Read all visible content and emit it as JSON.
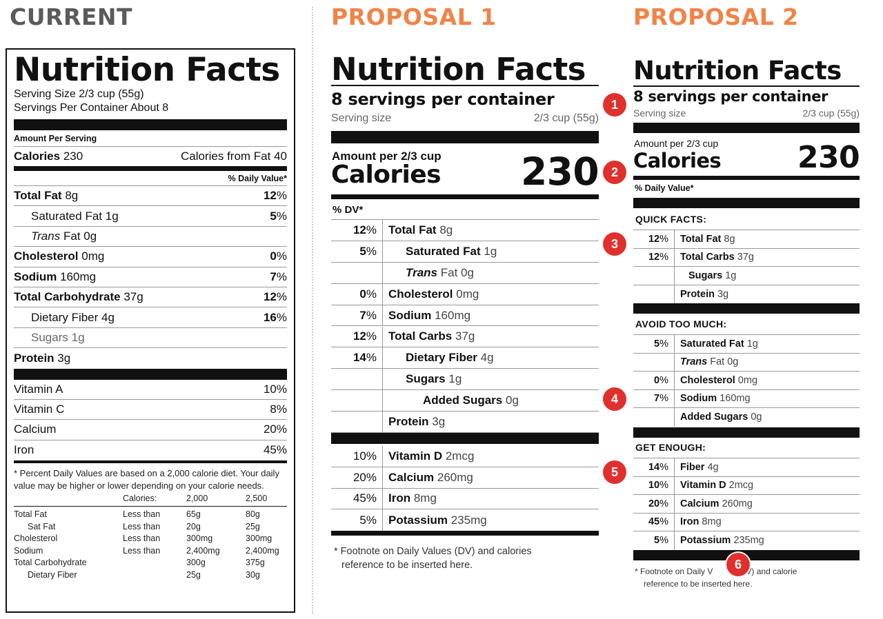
{
  "headings": {
    "current": "CURRENT",
    "proposal1": "PROPOSAL 1",
    "proposal2": "PROPOSAL 2"
  },
  "current": {
    "title": "Nutrition Facts",
    "serving_size": "Serving Size 2/3 cup (55g)",
    "servings_per_container": "Servings Per Container About 8",
    "amount_per_serving": "Amount Per Serving",
    "calories_label": "Calories",
    "calories_value": "230",
    "calories_from_fat": "Calories from Fat 40",
    "daily_value_header": "% Daily Value*",
    "nutrients": [
      {
        "name": "Total Fat",
        "amount": "8g",
        "dv": "12",
        "bold": true,
        "indent": false
      },
      {
        "name": "Saturated Fat",
        "amount": "1g",
        "dv": "5",
        "bold": false,
        "indent": true
      },
      {
        "name": "Trans",
        "amount": "Fat 0g",
        "dv": "",
        "bold": false,
        "indent": true
      },
      {
        "name": "Cholesterol",
        "amount": "0mg",
        "dv": "0",
        "bold": true,
        "indent": false
      },
      {
        "name": "Sodium",
        "amount": "160mg",
        "dv": "7",
        "bold": true,
        "indent": false
      },
      {
        "name": "Total Carbohydrate",
        "amount": "37g",
        "dv": "12",
        "bold": true,
        "indent": false
      },
      {
        "name": "Dietary Fiber",
        "amount": "4g",
        "dv": "16",
        "bold": false,
        "indent": true
      },
      {
        "name": "Sugars",
        "amount": "1g",
        "dv": "",
        "bold": false,
        "indent": true
      },
      {
        "name": "Protein",
        "amount": "3g",
        "dv": "",
        "bold": true,
        "indent": false
      }
    ],
    "vitamins": [
      {
        "name": "Vitamin A",
        "dv": "10%"
      },
      {
        "name": "Vitamin C",
        "dv": "8%"
      },
      {
        "name": "Calcium",
        "dv": "20%"
      },
      {
        "name": "Iron",
        "dv": "45%"
      }
    ],
    "footnote": "* Percent Daily Values are based on a 2,000 calorie diet. Your daily value may be higher or lower depending on your calorie needs.",
    "ref_header": {
      "label": "Calories:",
      "c2000": "2,000",
      "c2500": "2,500"
    },
    "ref_rows": [
      {
        "name": "Total Fat",
        "cond": "Less than",
        "a": "65g",
        "b": "80g"
      },
      {
        "name": "Sat Fat",
        "cond": "Less than",
        "a": "20g",
        "b": "25g"
      },
      {
        "name": "Cholesterol",
        "cond": "Less than",
        "a": "300mg",
        "b": "300mg"
      },
      {
        "name": "Sodium",
        "cond": "Less than",
        "a": "2,400mg",
        "b": "2,400mg"
      },
      {
        "name": "Total Carbohydrate",
        "cond": "",
        "a": "300g",
        "b": "375g"
      },
      {
        "name": "Dietary Fiber",
        "cond": "",
        "a": "25g",
        "b": "30g"
      }
    ]
  },
  "proposal1": {
    "title": "Nutrition Facts",
    "servings": "8 servings per container",
    "serving_size_label": "Serving size",
    "serving_size_value": "2/3 cup (55g)",
    "amount_per": "Amount per 2/3 cup",
    "calories_label": "Calories",
    "calories_value": "230",
    "dv_header": "% DV*",
    "nutrients": [
      {
        "dv": "12",
        "name": "Total Fat",
        "amount": "8g"
      },
      {
        "dv": "5",
        "name": "Saturated Fat",
        "amount": "1g"
      },
      {
        "dv": "",
        "name": "Trans",
        "amount": "Fat 0g"
      },
      {
        "dv": "0",
        "name": "Cholesterol",
        "amount": "0mg"
      },
      {
        "dv": "7",
        "name": "Sodium",
        "amount": "160mg"
      },
      {
        "dv": "12",
        "name": "Total Carbs",
        "amount": "37g"
      },
      {
        "dv": "14",
        "name": "Dietary Fiber",
        "amount": "4g"
      },
      {
        "dv": "",
        "name": "Sugars",
        "amount": "1g"
      },
      {
        "dv": "",
        "name": "Added Sugars",
        "amount": "0g"
      },
      {
        "dv": "",
        "name": "Protein",
        "amount": "3g"
      }
    ],
    "vitamins": [
      {
        "dv": "10%",
        "name": "Vitamin D",
        "amount": "2mcg"
      },
      {
        "dv": "20%",
        "name": "Calcium",
        "amount": "260mg"
      },
      {
        "dv": "45%",
        "name": "Iron",
        "amount": "8mg"
      },
      {
        "dv": "5%",
        "name": "Potassium",
        "amount": "235mg"
      }
    ],
    "footnote_line1": "* Footnote on Daily Values (DV) and calories",
    "footnote_line2": "reference to be inserted here."
  },
  "proposal2": {
    "title": "Nutrition Facts",
    "servings": "8 servings per container",
    "serving_size_label": "Serving size",
    "serving_size_value": "2/3 cup (55g)",
    "amount_per": "Amount per 2/3 cup",
    "calories_label": "Calories",
    "calories_value": "230",
    "daily_value_header": "% Daily Value*",
    "quick_facts_title": "QUICK FACTS:",
    "quick_facts": [
      {
        "dv": "12",
        "name": "Total Fat",
        "amount": "8g"
      },
      {
        "dv": "12",
        "name": "Total Carbs",
        "amount": "37g"
      },
      {
        "dv": "",
        "name": "Sugars",
        "amount": "1g"
      },
      {
        "dv": "",
        "name": "Protein",
        "amount": "3g"
      }
    ],
    "avoid_title": "AVOID TOO MUCH:",
    "avoid": [
      {
        "dv": "5",
        "name": "Saturated Fat",
        "amount": "1g"
      },
      {
        "dv": "",
        "name": "Trans",
        "amount": "Fat 0g"
      },
      {
        "dv": "0",
        "name": "Cholesterol",
        "amount": "0mg"
      },
      {
        "dv": "7",
        "name": "Sodium",
        "amount": "160mg"
      },
      {
        "dv": "",
        "name": "Added Sugars",
        "amount": "0g"
      }
    ],
    "get_title": "GET ENOUGH:",
    "get": [
      {
        "dv": "14",
        "name": "Fiber",
        "amount": "4g"
      },
      {
        "dv": "10",
        "name": "Vitamin D",
        "amount": "2mcg"
      },
      {
        "dv": "20",
        "name": "Calcium",
        "amount": "260mg"
      },
      {
        "dv": "45",
        "name": "Iron",
        "amount": "8mg"
      },
      {
        "dv": "5",
        "name": "Potassium",
        "amount": "235mg"
      }
    ],
    "footnote_line1": "* Footnote on Daily V",
    "footnote_line1b": "s (DV) and calorie",
    "footnote_line2": "reference to be inserted here."
  },
  "badges": [
    "1",
    "2",
    "3",
    "4",
    "5",
    "6"
  ],
  "colors": {
    "accent": "#f08448",
    "badge": "#e0302e",
    "current_heading": "#5b5b5b"
  }
}
